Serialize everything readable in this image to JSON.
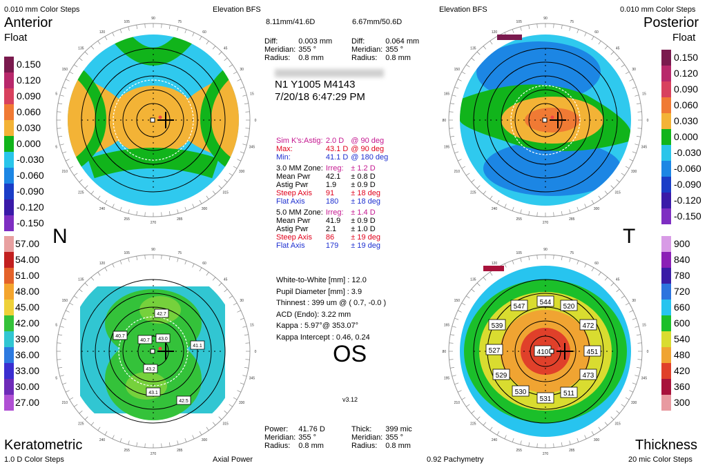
{
  "corners": {
    "top_left_steps": "0.010 mm Color Steps",
    "top_mid_left": "Elevation BFS",
    "top_mid_right": "Elevation BFS",
    "top_right_steps": "0.010 mm Color Steps",
    "bottom_left_steps": "1.0 D Color Steps",
    "bottom_mid_left": "Axial Power",
    "bottom_mid_right": "0.92 Pachymetry",
    "bottom_right_steps": "20 mic Color Steps"
  },
  "labels": {
    "anterior": "Anterior",
    "float_left": "Float",
    "posterior": "Posterior",
    "float_right": "Float",
    "keratometric": "Keratometric",
    "thickness": "Thickness",
    "n": "N",
    "t": "T",
    "os": "OS",
    "version": "v3.12"
  },
  "elevation_header": {
    "bfs_left": "8.11mm/41.6D",
    "bfs_right": "6.67mm/50.6D",
    "left": {
      "diff_label": "Diff:",
      "diff": "0.003 mm",
      "meridian_label": "Meridian:",
      "meridian": "355 °",
      "radius_label": "Radius:",
      "radius": "0.8 mm"
    },
    "right": {
      "diff_label": "Diff:",
      "diff": "0.064 mm",
      "meridian_label": "Meridian:",
      "meridian": "355 °",
      "radius_label": "Radius:",
      "radius": "0.8 mm"
    }
  },
  "patient": {
    "id": "N1 Y1005 M4143",
    "datetime": "7/20/18 6:47:29 PM"
  },
  "simk": {
    "astig_label": "Sim K's:Astig:",
    "astig": "2.0 D",
    "astig_axis": "@ 90 deg",
    "max_label": "Max:",
    "max": "43.1 D",
    "max_axis": "@ 90 deg",
    "min_label": "Min:",
    "min": "41.1 D",
    "min_axis": "@ 180 deg"
  },
  "zone3": {
    "title": "3.0 MM Zone:",
    "irreg_label": "Irreg:",
    "irreg": "± 1.2 D",
    "mean_label": "Mean Pwr",
    "mean": "42.1",
    "mean_sd": "± 0.8 D",
    "astig_label": "Astig Pwr",
    "astig": "1.9",
    "astig_sd": "± 0.9 D",
    "steep_label": "Steep Axis",
    "steep": "91",
    "steep_sd": "± 18 deg",
    "flat_label": "Flat Axis",
    "flat": "180",
    "flat_sd": "± 18 deg"
  },
  "zone5": {
    "title": "5.0 MM Zone:",
    "irreg_label": "Irreg:",
    "irreg": "± 1.4 D",
    "mean_label": "Mean Pwr",
    "mean": "41.9",
    "mean_sd": "± 0.9 D",
    "astig_label": "Astig Pwr",
    "astig": "2.1",
    "astig_sd": "± 1.0 D",
    "steep_label": "Steep Axis",
    "steep": "86",
    "steep_sd": "± 19 deg",
    "flat_label": "Flat Axis",
    "flat": "179",
    "flat_sd": "± 19 deg"
  },
  "misc": [
    "White-to-White [mm] : 12.0",
    "Pupil Diameter [mm] : 3.9",
    "Thinnest : 399 um @ ( 0.7, -0.0 )",
    "ACD (Endo): 3.22 mm",
    "Kappa : 5.97°@ 353.07°",
    "Kappa Intercept : 0.46, 0.24"
  ],
  "bottom_header": {
    "left": {
      "power_label": "Power:",
      "power": "41.76 D",
      "meridian_label": "Meridian:",
      "meridian": "355 °",
      "radius_label": "Radius:",
      "radius": "0.8 mm"
    },
    "right": {
      "thick_label": "Thick:",
      "thick": "399 mic",
      "meridian_label": "Meridian:",
      "meridian": "355 °",
      "radius_label": "Radius:",
      "radius": "0.8 mm"
    }
  },
  "scales": {
    "elev_left": [
      "0.150",
      "0.120",
      "0.090",
      "0.060",
      "0.030",
      "0.000",
      "-0.030",
      "-0.060",
      "-0.090",
      "-0.120",
      "-0.150"
    ],
    "elev_right": [
      "0.150",
      "0.120",
      "0.090",
      "0.060",
      "0.030",
      "0.000",
      "-0.030",
      "-0.060",
      "-0.090",
      "-0.120",
      "-0.150"
    ],
    "power": [
      "57.00",
      "54.00",
      "51.00",
      "48.00",
      "45.00",
      "42.00",
      "39.00",
      "36.00",
      "33.00",
      "30.00",
      "27.00"
    ],
    "thick": [
      "900",
      "840",
      "780",
      "720",
      "660",
      "600",
      "540",
      "480",
      "420",
      "360",
      "300"
    ],
    "elev_colors": [
      "#7a1a4e",
      "#b8286b",
      "#d8415e",
      "#f07a34",
      "#f3b336",
      "#11b41b",
      "#29c5ea",
      "#1c86e4",
      "#1a3dc7",
      "#3a1aa8",
      "#7e2ec2"
    ],
    "power_colors": [
      "#e8a0a0",
      "#c21f1f",
      "#e4622a",
      "#f4a52e",
      "#eed13a",
      "#34c23a",
      "#31c6d2",
      "#2d7ae0",
      "#3b2ed0",
      "#6e2bb8",
      "#b050d4"
    ],
    "thick_colors": [
      "#d89be6",
      "#8b1fb6",
      "#3a1ca6",
      "#2c74de",
      "#27c4ef",
      "#1bbf2a",
      "#d9dc30",
      "#f0a432",
      "#e0402a",
      "#a8123b",
      "#e89aa0"
    ]
  },
  "axial_labels": [
    "42.7",
    "40.7",
    "40.7",
    "43.0",
    "41.1",
    "43.2",
    "43.1",
    "42.5"
  ],
  "pachy_labels": [
    "544",
    "547",
    "520",
    "539",
    "472",
    "527",
    "410",
    "451",
    "529",
    "473",
    "530",
    "511",
    "531"
  ],
  "ring_degrees": [
    "90",
    "60",
    "45",
    "30",
    "0",
    "330",
    "315",
    "300",
    "270",
    "240",
    "225",
    "210",
    "180",
    "150",
    "135",
    "120",
    "105",
    "75",
    "345",
    "285",
    "255",
    "195",
    "165",
    "15"
  ]
}
